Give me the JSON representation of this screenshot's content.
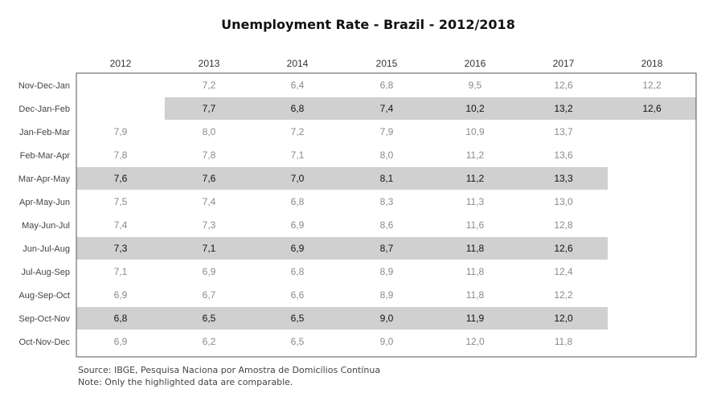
{
  "chart_data": {
    "type": "table",
    "title": "Unemployment Rate - Brazil - 2012/2018",
    "columns": [
      "2012",
      "2013",
      "2014",
      "2015",
      "2016",
      "2017",
      "2018"
    ],
    "rows": [
      {
        "label": "Nov-Dec-Jan",
        "values": [
          "",
          "7,2",
          "6,4",
          "6,8",
          "9,5",
          "12,6",
          "12,2"
        ],
        "highlighted": false
      },
      {
        "label": "Dec-Jan-Feb",
        "values": [
          "",
          "7,7",
          "6,8",
          "7,4",
          "10,2",
          "13,2",
          "12,6"
        ],
        "highlighted": true
      },
      {
        "label": "Jan-Feb-Mar",
        "values": [
          "7,9",
          "8,0",
          "7,2",
          "7,9",
          "10,9",
          "13,7",
          ""
        ],
        "highlighted": false
      },
      {
        "label": "Feb-Mar-Apr",
        "values": [
          "7,8",
          "7,8",
          "7,1",
          "8,0",
          "11,2",
          "13,6",
          ""
        ],
        "highlighted": false
      },
      {
        "label": "Mar-Apr-May",
        "values": [
          "7,6",
          "7,6",
          "7,0",
          "8,1",
          "11,2",
          "13,3",
          ""
        ],
        "highlighted": true
      },
      {
        "label": "Apr-May-Jun",
        "values": [
          "7,5",
          "7,4",
          "6,8",
          "8,3",
          "11,3",
          "13,0",
          ""
        ],
        "highlighted": false
      },
      {
        "label": "May-Jun-Jul",
        "values": [
          "7,4",
          "7,3",
          "6,9",
          "8,6",
          "11,6",
          "12,8",
          ""
        ],
        "highlighted": false
      },
      {
        "label": "Jun-Jul-Aug",
        "values": [
          "7,3",
          "7,1",
          "6,9",
          "8,7",
          "11,8",
          "12,6",
          ""
        ],
        "highlighted": true
      },
      {
        "label": "Jul-Aug-Sep",
        "values": [
          "7,1",
          "6,9",
          "6,8",
          "8,9",
          "11,8",
          "12,4",
          ""
        ],
        "highlighted": false
      },
      {
        "label": "Aug-Sep-Oct",
        "values": [
          "6,9",
          "6,7",
          "6,6",
          "8,9",
          "11,8",
          "12,2",
          ""
        ],
        "highlighted": false
      },
      {
        "label": "Sep-Oct-Nov",
        "values": [
          "6,8",
          "6,5",
          "6,5",
          "9,0",
          "11,9",
          "12,0",
          ""
        ],
        "highlighted": true
      },
      {
        "label": "Oct-Nov-Dec",
        "values": [
          "6,9",
          "6,2",
          "6,5",
          "9,0",
          "12,0",
          "11,8",
          ""
        ],
        "highlighted": false
      }
    ],
    "highlight_color": "#d0d0d0",
    "highlighted_text_color": "#111111",
    "normal_text_color": "#8a8a8a",
    "label_color": "#444444",
    "border_color": "#555555"
  },
  "notes": {
    "source": "Source: IBGE, Pesquisa Naciona por Amostra de Domicílios Contínua",
    "note": "Note: Only the highlighted data are comparable."
  }
}
